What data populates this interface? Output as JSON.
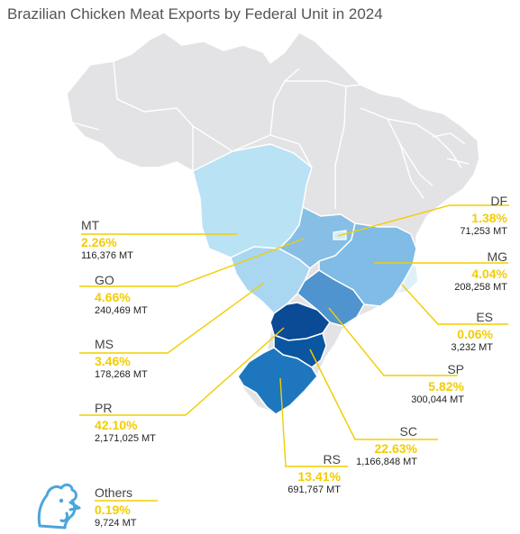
{
  "title": "Brazilian Chicken Meat Exports by Federal Unit in 2024",
  "colors": {
    "country_base": "#e3e3e5",
    "state_border": "#ffffff",
    "leader_line": "#f2cd00",
    "percent_text": "#f2cd00",
    "icon_stroke": "#4aa6db"
  },
  "states": {
    "MT": {
      "name": "MT",
      "share": "2.26%",
      "volume": "116,376 MT",
      "fill": "#b9e2f5"
    },
    "GO": {
      "name": "GO",
      "share": "4.66%",
      "volume": "240,469 MT",
      "fill": "#86bee6"
    },
    "MS": {
      "name": "MS",
      "share": "3.46%",
      "volume": "178,268 MT",
      "fill": "#a9d7f2"
    },
    "PR": {
      "name": "PR",
      "share": "42.10%",
      "volume": "2,171,025 MT",
      "fill": "#0b4a95"
    },
    "DF": {
      "name": "DF",
      "share": "1.38%",
      "volume": "71,253 MT",
      "fill": "#d5ecf7"
    },
    "MG": {
      "name": "MG",
      "share": "4.04%",
      "volume": "208,258 MT",
      "fill": "#80bce6"
    },
    "ES": {
      "name": "ES",
      "share": "0.06%",
      "volume": "3,232 MT",
      "fill": "#dff0f9"
    },
    "SP": {
      "name": "SP",
      "share": "5.82%",
      "volume": "300,044 MT",
      "fill": "#4f93cf"
    },
    "SC": {
      "name": "SC",
      "share": "22.63%",
      "volume": "1,166,848 MT",
      "fill": "#0b56a0"
    },
    "RS": {
      "name": "RS",
      "share": "13.41%",
      "volume": "691,767 MT",
      "fill": "#1e77be"
    }
  },
  "others": {
    "name": "Others",
    "share": "0.19%",
    "volume": "9,724 MT",
    "icon": "chicken-head-icon"
  }
}
